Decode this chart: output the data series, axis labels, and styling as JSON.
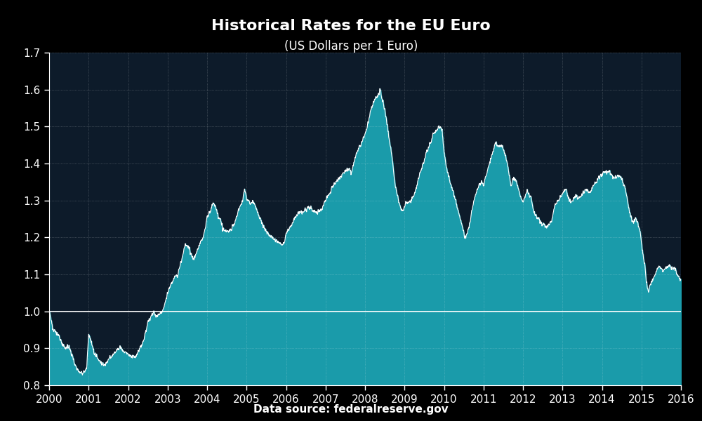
{
  "title": "Historical Rates for the EU Euro",
  "subtitle": "(US Dollars per 1 Euro)",
  "source_label": "Data source: federalreserve.gov",
  "background_color": "#000000",
  "axes_bg_color": "#0d1b2a",
  "fill_color": "#1a9baa",
  "line_color": "#ffffff",
  "grid_color": "#ffffff",
  "hline_color": "#ffffff",
  "hline_y": 1.0,
  "ylim": [
    0.8,
    1.7
  ],
  "yticks": [
    0.8,
    0.9,
    1.0,
    1.1,
    1.2,
    1.3,
    1.4,
    1.5,
    1.6,
    1.7
  ],
  "title_fontsize": 16,
  "subtitle_fontsize": 12,
  "tick_fontsize": 11,
  "source_fontsize": 11,
  "control_points": [
    [
      2000.0,
      1.0
    ],
    [
      2000.04,
      0.98
    ],
    [
      2000.08,
      0.96
    ],
    [
      2000.12,
      0.95
    ],
    [
      2000.2,
      0.94
    ],
    [
      2000.3,
      0.92
    ],
    [
      2000.4,
      0.9
    ],
    [
      2000.5,
      0.905
    ],
    [
      2000.55,
      0.89
    ],
    [
      2000.6,
      0.875
    ],
    [
      2000.65,
      0.858
    ],
    [
      2000.7,
      0.845
    ],
    [
      2000.75,
      0.84
    ],
    [
      2000.8,
      0.835
    ],
    [
      2000.85,
      0.83
    ],
    [
      2000.9,
      0.838
    ],
    [
      2000.95,
      0.845
    ],
    [
      2001.0,
      0.94
    ],
    [
      2001.05,
      0.92
    ],
    [
      2001.1,
      0.9
    ],
    [
      2001.15,
      0.885
    ],
    [
      2001.2,
      0.878
    ],
    [
      2001.25,
      0.87
    ],
    [
      2001.3,
      0.862
    ],
    [
      2001.35,
      0.855
    ],
    [
      2001.4,
      0.855
    ],
    [
      2001.45,
      0.86
    ],
    [
      2001.5,
      0.87
    ],
    [
      2001.55,
      0.875
    ],
    [
      2001.6,
      0.88
    ],
    [
      2001.65,
      0.888
    ],
    [
      2001.7,
      0.893
    ],
    [
      2001.75,
      0.898
    ],
    [
      2001.8,
      0.905
    ],
    [
      2001.85,
      0.895
    ],
    [
      2001.9,
      0.89
    ],
    [
      2001.95,
      0.888
    ],
    [
      2002.0,
      0.883
    ],
    [
      2002.1,
      0.876
    ],
    [
      2002.2,
      0.878
    ],
    [
      2002.3,
      0.9
    ],
    [
      2002.4,
      0.925
    ],
    [
      2002.5,
      0.97
    ],
    [
      2002.6,
      0.99
    ],
    [
      2002.65,
      1.002
    ],
    [
      2002.7,
      0.985
    ],
    [
      2002.8,
      0.992
    ],
    [
      2002.9,
      1.01
    ],
    [
      2003.0,
      1.05
    ],
    [
      2003.1,
      1.075
    ],
    [
      2003.15,
      1.09
    ],
    [
      2003.2,
      1.1
    ],
    [
      2003.25,
      1.095
    ],
    [
      2003.3,
      1.12
    ],
    [
      2003.35,
      1.14
    ],
    [
      2003.4,
      1.16
    ],
    [
      2003.45,
      1.18
    ],
    [
      2003.5,
      1.175
    ],
    [
      2003.55,
      1.165
    ],
    [
      2003.6,
      1.155
    ],
    [
      2003.65,
      1.14
    ],
    [
      2003.7,
      1.15
    ],
    [
      2003.8,
      1.18
    ],
    [
      2003.9,
      1.2
    ],
    [
      2003.95,
      1.225
    ],
    [
      2004.0,
      1.255
    ],
    [
      2004.1,
      1.275
    ],
    [
      2004.15,
      1.295
    ],
    [
      2004.2,
      1.285
    ],
    [
      2004.3,
      1.25
    ],
    [
      2004.35,
      1.245
    ],
    [
      2004.4,
      1.22
    ],
    [
      2004.5,
      1.215
    ],
    [
      2004.6,
      1.22
    ],
    [
      2004.7,
      1.24
    ],
    [
      2004.8,
      1.275
    ],
    [
      2004.9,
      1.3
    ],
    [
      2004.95,
      1.33
    ],
    [
      2005.0,
      1.305
    ],
    [
      2005.05,
      1.298
    ],
    [
      2005.1,
      1.29
    ],
    [
      2005.15,
      1.295
    ],
    [
      2005.2,
      1.29
    ],
    [
      2005.25,
      1.275
    ],
    [
      2005.3,
      1.26
    ],
    [
      2005.35,
      1.248
    ],
    [
      2005.4,
      1.235
    ],
    [
      2005.45,
      1.225
    ],
    [
      2005.5,
      1.215
    ],
    [
      2005.55,
      1.21
    ],
    [
      2005.6,
      1.205
    ],
    [
      2005.65,
      1.2
    ],
    [
      2005.7,
      1.195
    ],
    [
      2005.75,
      1.192
    ],
    [
      2005.8,
      1.188
    ],
    [
      2005.85,
      1.183
    ],
    [
      2005.9,
      1.18
    ],
    [
      2005.95,
      1.185
    ],
    [
      2006.0,
      1.212
    ],
    [
      2006.1,
      1.225
    ],
    [
      2006.15,
      1.235
    ],
    [
      2006.2,
      1.25
    ],
    [
      2006.3,
      1.265
    ],
    [
      2006.4,
      1.27
    ],
    [
      2006.5,
      1.275
    ],
    [
      2006.6,
      1.28
    ],
    [
      2006.7,
      1.27
    ],
    [
      2006.8,
      1.268
    ],
    [
      2006.9,
      1.275
    ],
    [
      2007.0,
      1.305
    ],
    [
      2007.1,
      1.32
    ],
    [
      2007.2,
      1.34
    ],
    [
      2007.3,
      1.355
    ],
    [
      2007.4,
      1.365
    ],
    [
      2007.5,
      1.38
    ],
    [
      2007.6,
      1.385
    ],
    [
      2007.65,
      1.375
    ],
    [
      2007.7,
      1.395
    ],
    [
      2007.75,
      1.415
    ],
    [
      2007.8,
      1.43
    ],
    [
      2007.85,
      1.445
    ],
    [
      2007.9,
      1.455
    ],
    [
      2007.95,
      1.465
    ],
    [
      2008.0,
      1.48
    ],
    [
      2008.05,
      1.5
    ],
    [
      2008.1,
      1.52
    ],
    [
      2008.15,
      1.545
    ],
    [
      2008.2,
      1.56
    ],
    [
      2008.25,
      1.575
    ],
    [
      2008.3,
      1.58
    ],
    [
      2008.35,
      1.585
    ],
    [
      2008.38,
      1.6
    ],
    [
      2008.4,
      1.595
    ],
    [
      2008.42,
      1.58
    ],
    [
      2008.45,
      1.57
    ],
    [
      2008.5,
      1.545
    ],
    [
      2008.55,
      1.51
    ],
    [
      2008.6,
      1.475
    ],
    [
      2008.65,
      1.44
    ],
    [
      2008.7,
      1.4
    ],
    [
      2008.75,
      1.35
    ],
    [
      2008.8,
      1.32
    ],
    [
      2008.85,
      1.3
    ],
    [
      2008.9,
      1.28
    ],
    [
      2008.95,
      1.27
    ],
    [
      2009.0,
      1.285
    ],
    [
      2009.05,
      1.295
    ],
    [
      2009.1,
      1.295
    ],
    [
      2009.15,
      1.3
    ],
    [
      2009.2,
      1.305
    ],
    [
      2009.25,
      1.32
    ],
    [
      2009.3,
      1.335
    ],
    [
      2009.35,
      1.36
    ],
    [
      2009.4,
      1.375
    ],
    [
      2009.45,
      1.395
    ],
    [
      2009.5,
      1.41
    ],
    [
      2009.55,
      1.43
    ],
    [
      2009.6,
      1.44
    ],
    [
      2009.65,
      1.455
    ],
    [
      2009.7,
      1.47
    ],
    [
      2009.75,
      1.485
    ],
    [
      2009.8,
      1.49
    ],
    [
      2009.85,
      1.495
    ],
    [
      2009.9,
      1.5
    ],
    [
      2009.95,
      1.49
    ],
    [
      2010.0,
      1.43
    ],
    [
      2010.05,
      1.395
    ],
    [
      2010.1,
      1.37
    ],
    [
      2010.15,
      1.35
    ],
    [
      2010.2,
      1.335
    ],
    [
      2010.25,
      1.315
    ],
    [
      2010.3,
      1.295
    ],
    [
      2010.35,
      1.275
    ],
    [
      2010.4,
      1.255
    ],
    [
      2010.45,
      1.235
    ],
    [
      2010.5,
      1.215
    ],
    [
      2010.52,
      1.205
    ],
    [
      2010.55,
      1.2
    ],
    [
      2010.6,
      1.215
    ],
    [
      2010.65,
      1.24
    ],
    [
      2010.7,
      1.27
    ],
    [
      2010.75,
      1.295
    ],
    [
      2010.8,
      1.315
    ],
    [
      2010.85,
      1.33
    ],
    [
      2010.9,
      1.345
    ],
    [
      2010.95,
      1.35
    ],
    [
      2011.0,
      1.34
    ],
    [
      2011.05,
      1.36
    ],
    [
      2011.1,
      1.38
    ],
    [
      2011.15,
      1.4
    ],
    [
      2011.2,
      1.42
    ],
    [
      2011.25,
      1.44
    ],
    [
      2011.3,
      1.455
    ],
    [
      2011.35,
      1.45
    ],
    [
      2011.4,
      1.448
    ],
    [
      2011.45,
      1.445
    ],
    [
      2011.5,
      1.44
    ],
    [
      2011.55,
      1.42
    ],
    [
      2011.6,
      1.4
    ],
    [
      2011.65,
      1.37
    ],
    [
      2011.7,
      1.34
    ],
    [
      2011.75,
      1.36
    ],
    [
      2011.8,
      1.355
    ],
    [
      2011.85,
      1.34
    ],
    [
      2011.9,
      1.325
    ],
    [
      2011.95,
      1.305
    ],
    [
      2012.0,
      1.295
    ],
    [
      2012.05,
      1.31
    ],
    [
      2012.1,
      1.325
    ],
    [
      2012.15,
      1.315
    ],
    [
      2012.2,
      1.31
    ],
    [
      2012.25,
      1.28
    ],
    [
      2012.3,
      1.265
    ],
    [
      2012.35,
      1.255
    ],
    [
      2012.4,
      1.25
    ],
    [
      2012.45,
      1.24
    ],
    [
      2012.5,
      1.238
    ],
    [
      2012.55,
      1.235
    ],
    [
      2012.6,
      1.225
    ],
    [
      2012.65,
      1.235
    ],
    [
      2012.7,
      1.24
    ],
    [
      2012.75,
      1.255
    ],
    [
      2012.8,
      1.285
    ],
    [
      2012.85,
      1.295
    ],
    [
      2012.9,
      1.3
    ],
    [
      2012.95,
      1.31
    ],
    [
      2013.0,
      1.32
    ],
    [
      2013.05,
      1.33
    ],
    [
      2013.1,
      1.33
    ],
    [
      2013.15,
      1.305
    ],
    [
      2013.2,
      1.295
    ],
    [
      2013.25,
      1.3
    ],
    [
      2013.3,
      1.308
    ],
    [
      2013.35,
      1.315
    ],
    [
      2013.4,
      1.305
    ],
    [
      2013.45,
      1.31
    ],
    [
      2013.5,
      1.318
    ],
    [
      2013.55,
      1.325
    ],
    [
      2013.6,
      1.33
    ],
    [
      2013.65,
      1.325
    ],
    [
      2013.7,
      1.32
    ],
    [
      2013.75,
      1.33
    ],
    [
      2013.8,
      1.345
    ],
    [
      2013.85,
      1.352
    ],
    [
      2013.9,
      1.358
    ],
    [
      2013.95,
      1.365
    ],
    [
      2014.0,
      1.37
    ],
    [
      2014.05,
      1.375
    ],
    [
      2014.1,
      1.38
    ],
    [
      2014.15,
      1.378
    ],
    [
      2014.2,
      1.375
    ],
    [
      2014.25,
      1.368
    ],
    [
      2014.3,
      1.362
    ],
    [
      2014.35,
      1.36
    ],
    [
      2014.4,
      1.368
    ],
    [
      2014.45,
      1.365
    ],
    [
      2014.5,
      1.358
    ],
    [
      2014.55,
      1.342
    ],
    [
      2014.6,
      1.325
    ],
    [
      2014.65,
      1.295
    ],
    [
      2014.7,
      1.265
    ],
    [
      2014.75,
      1.25
    ],
    [
      2014.8,
      1.24
    ],
    [
      2014.85,
      1.255
    ],
    [
      2014.9,
      1.235
    ],
    [
      2014.95,
      1.225
    ],
    [
      2015.0,
      1.185
    ],
    [
      2015.05,
      1.145
    ],
    [
      2015.1,
      1.115
    ],
    [
      2015.12,
      1.08
    ],
    [
      2015.15,
      1.065
    ],
    [
      2015.18,
      1.055
    ],
    [
      2015.2,
      1.065
    ],
    [
      2015.25,
      1.08
    ],
    [
      2015.3,
      1.09
    ],
    [
      2015.35,
      1.1
    ],
    [
      2015.4,
      1.115
    ],
    [
      2015.45,
      1.12
    ],
    [
      2015.5,
      1.115
    ],
    [
      2015.55,
      1.11
    ],
    [
      2015.6,
      1.115
    ],
    [
      2015.65,
      1.12
    ],
    [
      2015.7,
      1.125
    ],
    [
      2015.75,
      1.118
    ],
    [
      2015.8,
      1.115
    ],
    [
      2015.85,
      1.115
    ],
    [
      2015.9,
      1.1
    ],
    [
      2015.95,
      1.09
    ],
    [
      2016.0,
      1.085
    ]
  ]
}
